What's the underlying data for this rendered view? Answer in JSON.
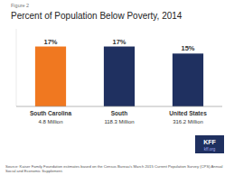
{
  "chart_data": {
    "type": "bar",
    "title": "Percent of Population Below Poverty, 2014",
    "categories": [
      "South Carolina",
      "South",
      "United States"
    ],
    "subtitles": [
      "4.8 Million",
      "118.3 Million",
      "316.2 Million"
    ],
    "values": [
      17,
      17,
      15
    ],
    "value_labels": [
      "17%",
      "17%",
      "15%"
    ],
    "data_labels": true,
    "colors": [
      "#F07820",
      "#1F3060",
      "#1F3060"
    ],
    "ylim": [
      0,
      22
    ],
    "yticks": [],
    "grid": false,
    "tick_labels": "x",
    "annotations": [
      "Figure 2",
      "Source: Kaiser Family Foundation estimates based on the Census Bureau's March 2015 Current Population Survey (CPS) Annual\nSocial and Economic Supplement.",
      "KFF",
      "kff.org"
    ]
  }
}
